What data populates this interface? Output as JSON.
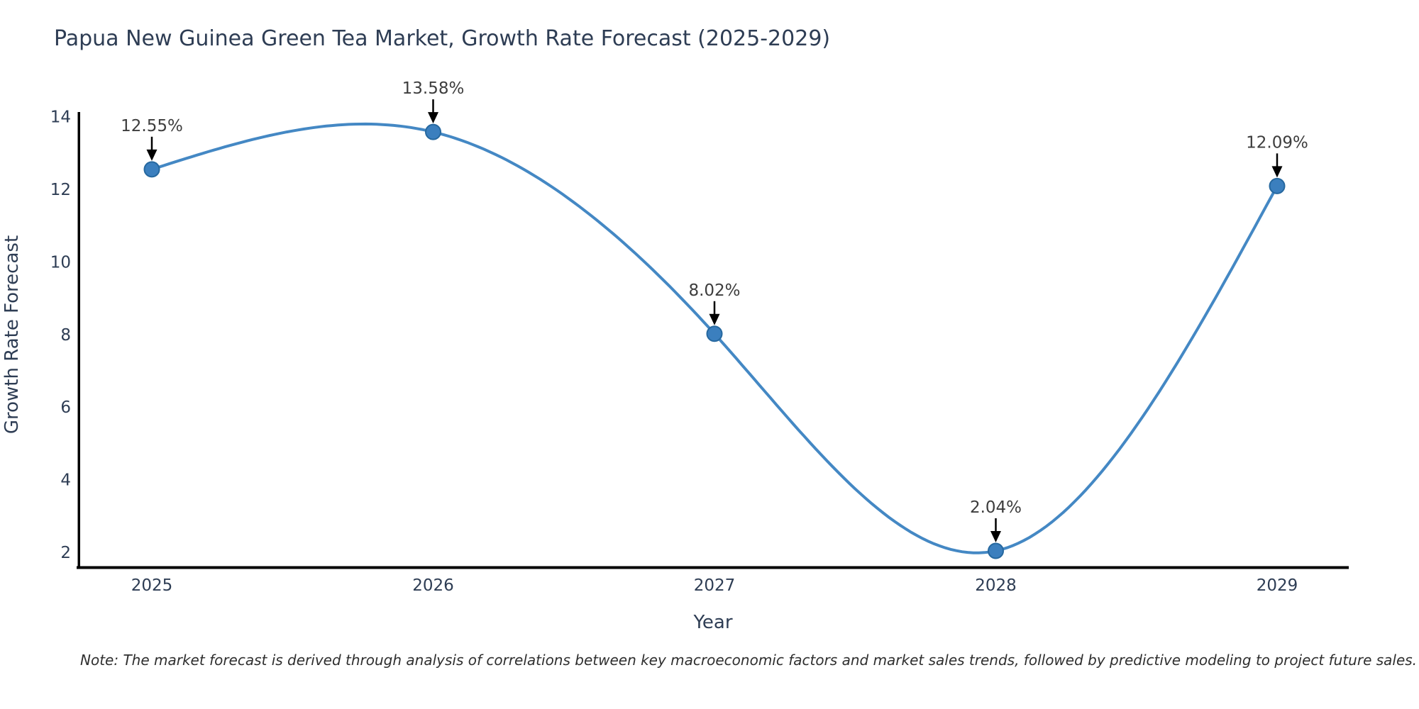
{
  "title": "Papua New Guinea Green Tea Market, Growth Rate Forecast (2025-2029)",
  "note": "Note: The market forecast is derived through analysis of correlations between key macroeconomic factors and market sales trends, followed by predictive modeling to project future sales.",
  "chart_data": {
    "type": "line",
    "x": [
      2025,
      2026,
      2027,
      2028,
      2029
    ],
    "values": [
      12.55,
      13.58,
      8.02,
      2.04,
      12.09
    ],
    "point_labels": [
      "12.55%",
      "13.58%",
      "8.02%",
      "2.04%",
      "12.09%"
    ],
    "xlabel": "Year",
    "ylabel": "Growth Rate Forecast",
    "xticks": [
      "2025",
      "2026",
      "2027",
      "2028",
      "2029"
    ],
    "yticks": [
      2,
      4,
      6,
      8,
      10,
      12,
      14
    ],
    "ylim": [
      1.6,
      14.6
    ],
    "grid": false,
    "legend": "none",
    "line_style": "smooth-cubic-spline",
    "marker": "circle",
    "annotations": "black arrows pointing down to each data point",
    "colors": {
      "line": "#4488c4",
      "marker_fill": "#3b7fbe",
      "marker_edge": "#26689f",
      "axis": "#000000",
      "title_text": "#2e3d54",
      "tick_text": "#2e3d54",
      "point_label_text": "#3d3d3d",
      "note_text": "#2f2f2f",
      "arrow": "#000000",
      "background": "#ffffff"
    }
  }
}
